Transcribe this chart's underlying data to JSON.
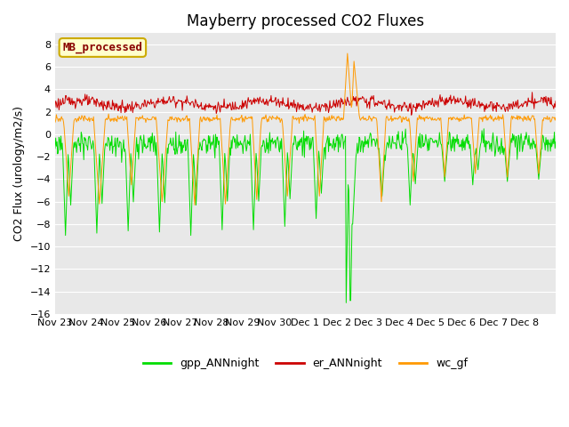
{
  "title": "Mayberry processed CO2 Fluxes",
  "ylabel": "CO2 Flux (urology/m2/s)",
  "ylim": [
    -16,
    9
  ],
  "yticks": [
    -16,
    -14,
    -12,
    -10,
    -8,
    -6,
    -4,
    -2,
    0,
    2,
    4,
    6,
    8
  ],
  "n_days": 16,
  "n_per_day": 48,
  "colors": {
    "gpp": "#00dd00",
    "er": "#cc0000",
    "wc": "#ff9900"
  },
  "legend_box_label": "MB_processed",
  "legend_box_facecolor": "#ffffcc",
  "legend_box_edgecolor": "#ccaa00",
  "legend_box_textcolor": "#880000",
  "plot_bg": "#e8e8e8",
  "fig_bg": "#ffffff",
  "legend_labels": [
    "gpp_ANNnight",
    "er_ANNnight",
    "wc_gf"
  ],
  "xticklabels": [
    "Nov 23",
    "Nov 24",
    "Nov 25",
    "Nov 26",
    "Nov 27",
    "Nov 28",
    "Nov 29",
    "Nov 30",
    "Dec 1",
    "Dec 2",
    "Dec 3",
    "Dec 4",
    "Dec 5",
    "Dec 6",
    "Dec 7",
    "Dec 8"
  ],
  "title_fontsize": 12,
  "axis_label_fontsize": 9,
  "tick_fontsize": 8,
  "legend_fontsize": 9,
  "linewidth": 0.7
}
